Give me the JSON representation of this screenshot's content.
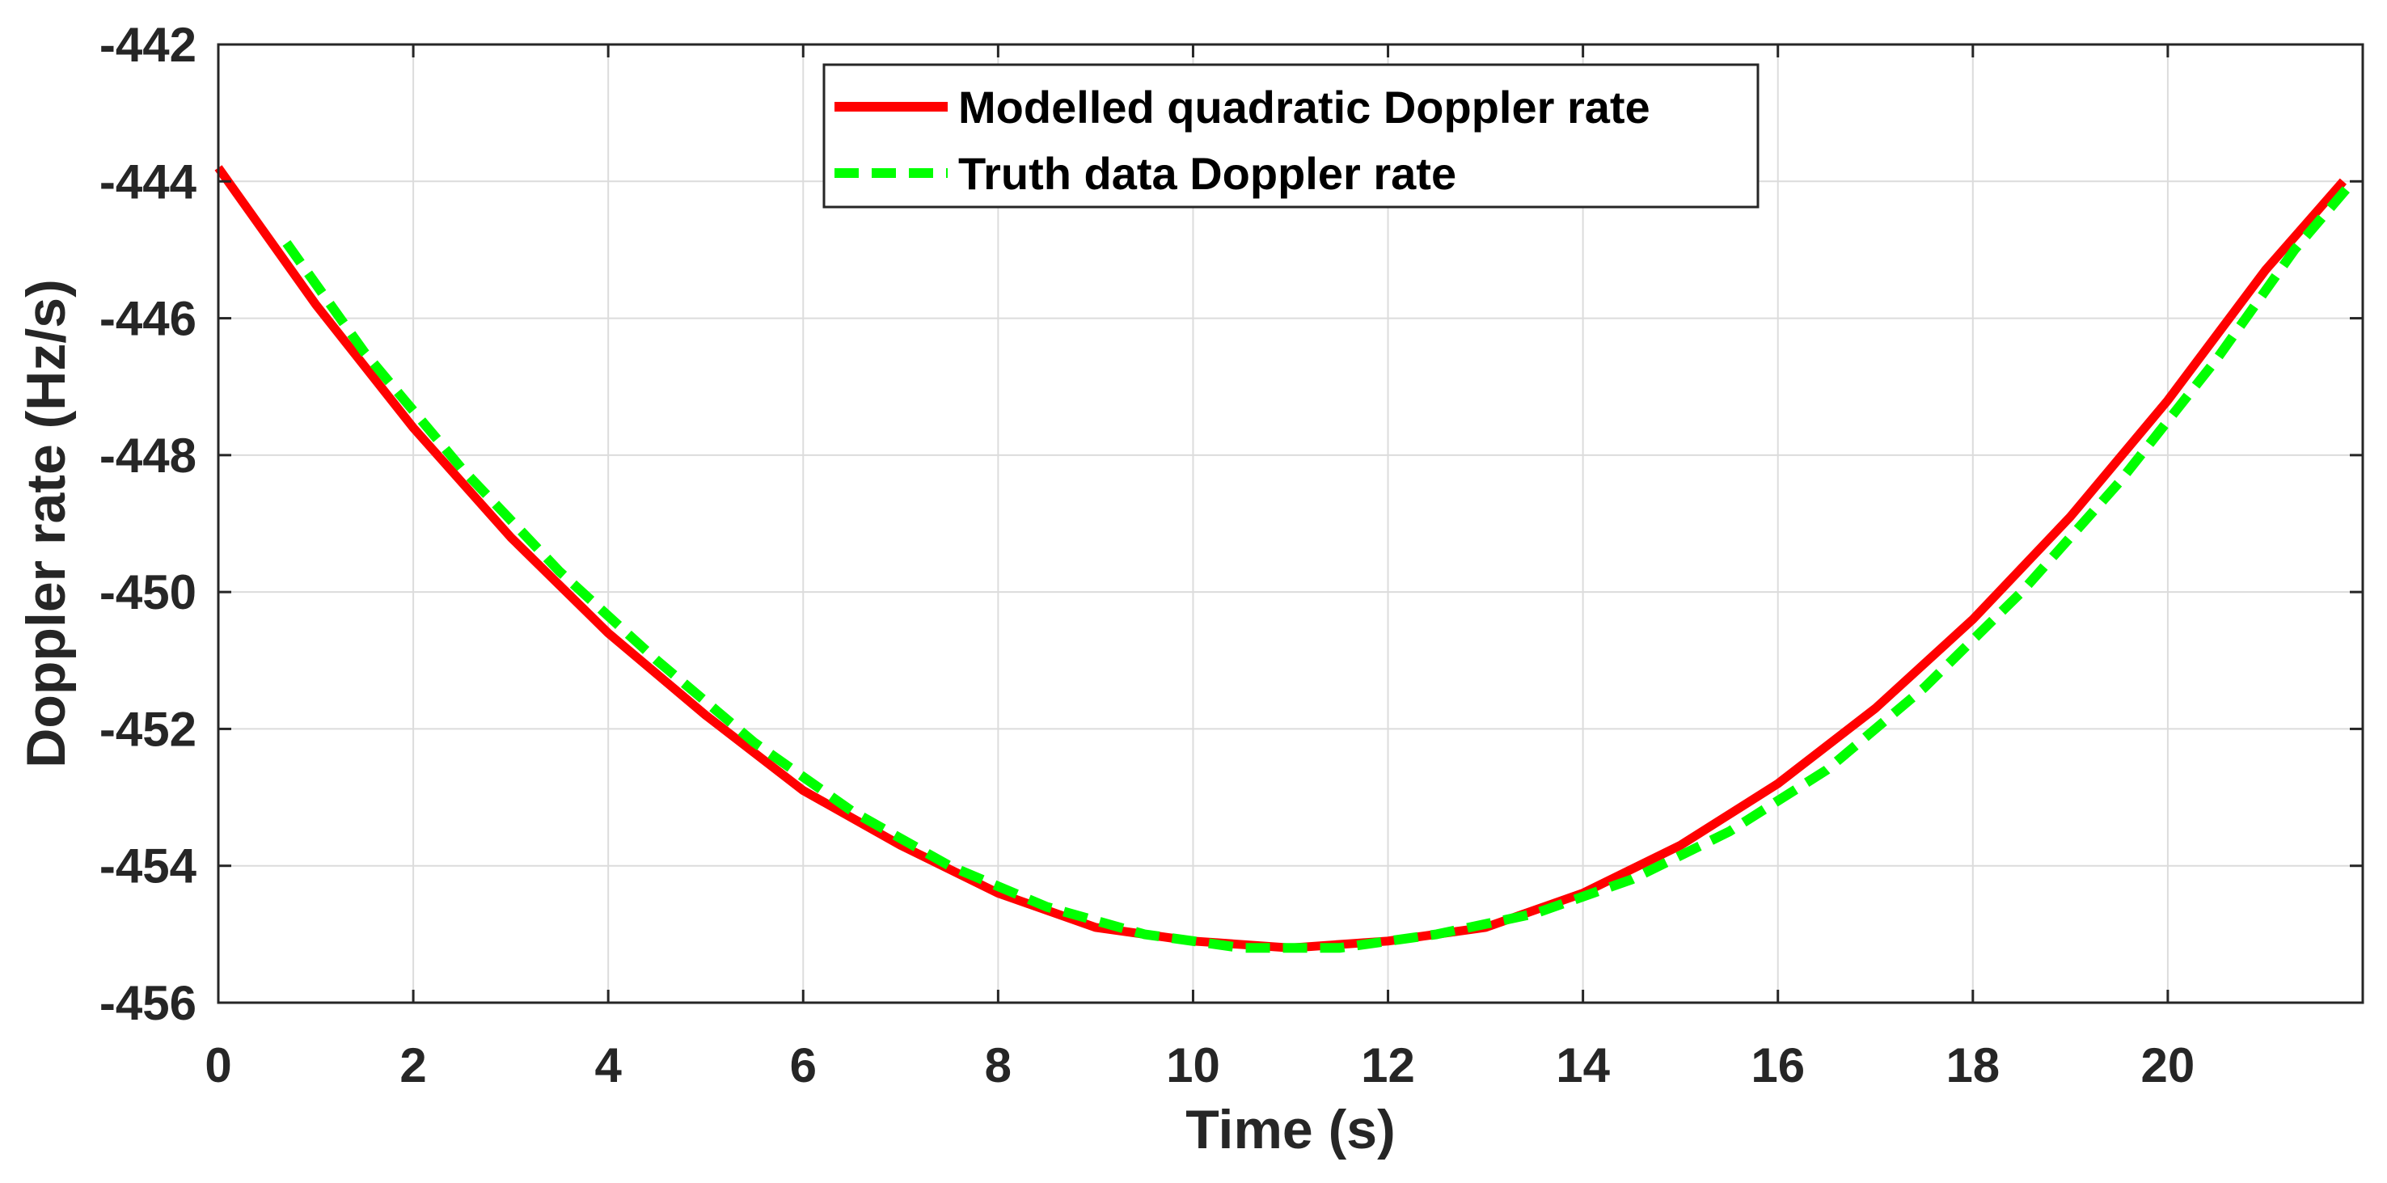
{
  "chart_data": {
    "type": "line",
    "title": "",
    "xlabel": "Time (s)",
    "ylabel": "Doppler rate (Hz/s)",
    "xlim": [
      0,
      22
    ],
    "ylim": [
      -456,
      -442
    ],
    "xticks": [
      0,
      2,
      4,
      6,
      8,
      10,
      12,
      14,
      16,
      18,
      20
    ],
    "yticks": [
      -456,
      -454,
      -452,
      -450,
      -448,
      -446,
      -444,
      -442
    ],
    "xtick_labels": [
      "0",
      "2",
      "4",
      "6",
      "8",
      "10",
      "12",
      "14",
      "16",
      "18",
      "20"
    ],
    "ytick_labels": [
      "-456",
      "-454",
      "-452",
      "-450",
      "-448",
      "-446",
      "-444",
      "-442"
    ],
    "grid": true,
    "legend_position": "top-center",
    "series": [
      {
        "name": "Modelled quadratic Doppler rate",
        "color": "#ff0000",
        "style": "solid",
        "x": [
          0,
          1,
          2,
          3,
          4,
          5,
          6,
          7,
          8,
          9,
          10,
          11,
          12,
          13,
          14,
          15,
          16,
          17,
          18,
          19,
          20,
          21,
          21.8
        ],
        "y": [
          -443.8,
          -445.8,
          -447.6,
          -449.2,
          -450.6,
          -451.8,
          -452.9,
          -453.7,
          -454.4,
          -454.9,
          -455.1,
          -455.2,
          -455.1,
          -454.9,
          -454.4,
          -453.7,
          -452.8,
          -451.7,
          -450.4,
          -448.9,
          -447.2,
          -445.3,
          -444.0
        ]
      },
      {
        "name": "Truth data Doppler rate",
        "color": "#00ff00",
        "style": "dashed",
        "x": [
          0.7,
          1.5,
          2.5,
          3.5,
          4.5,
          5.5,
          6.5,
          7.5,
          8.5,
          9.5,
          10.5,
          11.5,
          12.5,
          13.5,
          14.5,
          15.5,
          16.5,
          17.5,
          18.5,
          19.5,
          20.5,
          21.3,
          21.9
        ],
        "y": [
          -444.9,
          -446.5,
          -448.2,
          -449.7,
          -451.0,
          -452.2,
          -453.2,
          -454.0,
          -454.6,
          -455.0,
          -455.2,
          -455.2,
          -455.0,
          -454.7,
          -454.2,
          -453.5,
          -452.6,
          -451.4,
          -450.0,
          -448.4,
          -446.6,
          -445.0,
          -444.0
        ]
      }
    ]
  }
}
